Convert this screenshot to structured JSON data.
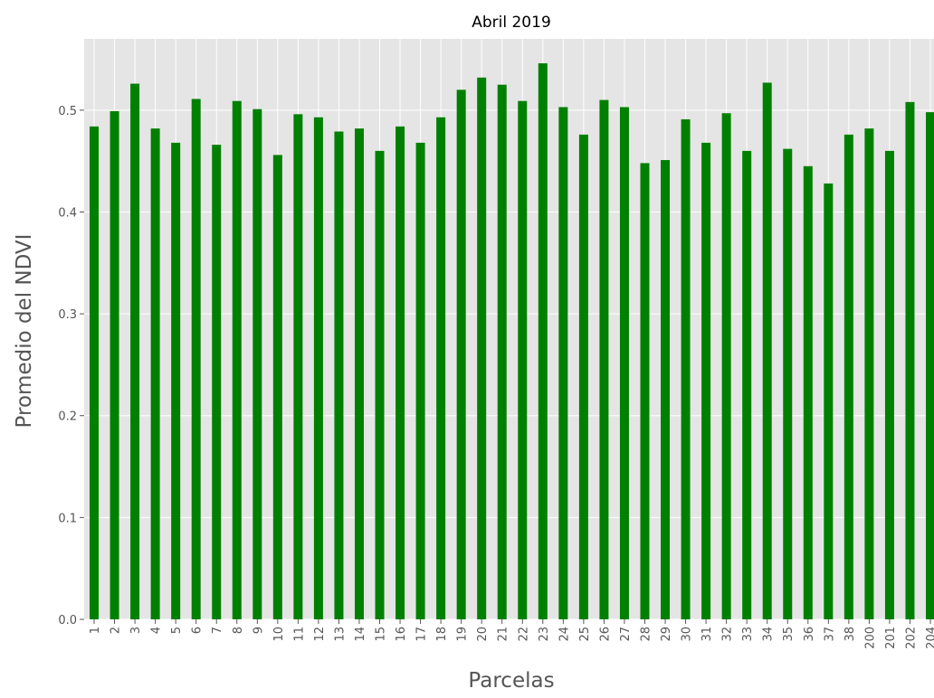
{
  "chart_data": {
    "type": "bar",
    "title": "Abril 2019",
    "xlabel": "Parcelas",
    "ylabel": "Promedio del NDVI",
    "categories": [
      "1",
      "2",
      "3",
      "4",
      "5",
      "6",
      "7",
      "8",
      "9",
      "10",
      "11",
      "12",
      "13",
      "14",
      "15",
      "16",
      "17",
      "18",
      "19",
      "20",
      "21",
      "22",
      "23",
      "24",
      "25",
      "26",
      "27",
      "28",
      "29",
      "30",
      "31",
      "32",
      "33",
      "34",
      "35",
      "36",
      "37",
      "38",
      "200",
      "201",
      "202",
      "204"
    ],
    "values": [
      0.484,
      0.499,
      0.526,
      0.482,
      0.468,
      0.511,
      0.466,
      0.509,
      0.501,
      0.456,
      0.496,
      0.493,
      0.479,
      0.482,
      0.46,
      0.484,
      0.468,
      0.493,
      0.52,
      0.532,
      0.525,
      0.509,
      0.546,
      0.503,
      0.476,
      0.51,
      0.503,
      0.448,
      0.451,
      0.491,
      0.468,
      0.497,
      0.46,
      0.527,
      0.462,
      0.445,
      0.428,
      0.476,
      0.482,
      0.46,
      0.508,
      0.498
    ],
    "ylim": [
      0,
      0.57
    ],
    "yticks": [
      "0.0",
      "0.1",
      "0.2",
      "0.3",
      "0.4",
      "0.5"
    ],
    "bar_color": "#008000",
    "plot_background": "#e5e5e5",
    "grid": true,
    "grid_color": "#ffffff"
  }
}
